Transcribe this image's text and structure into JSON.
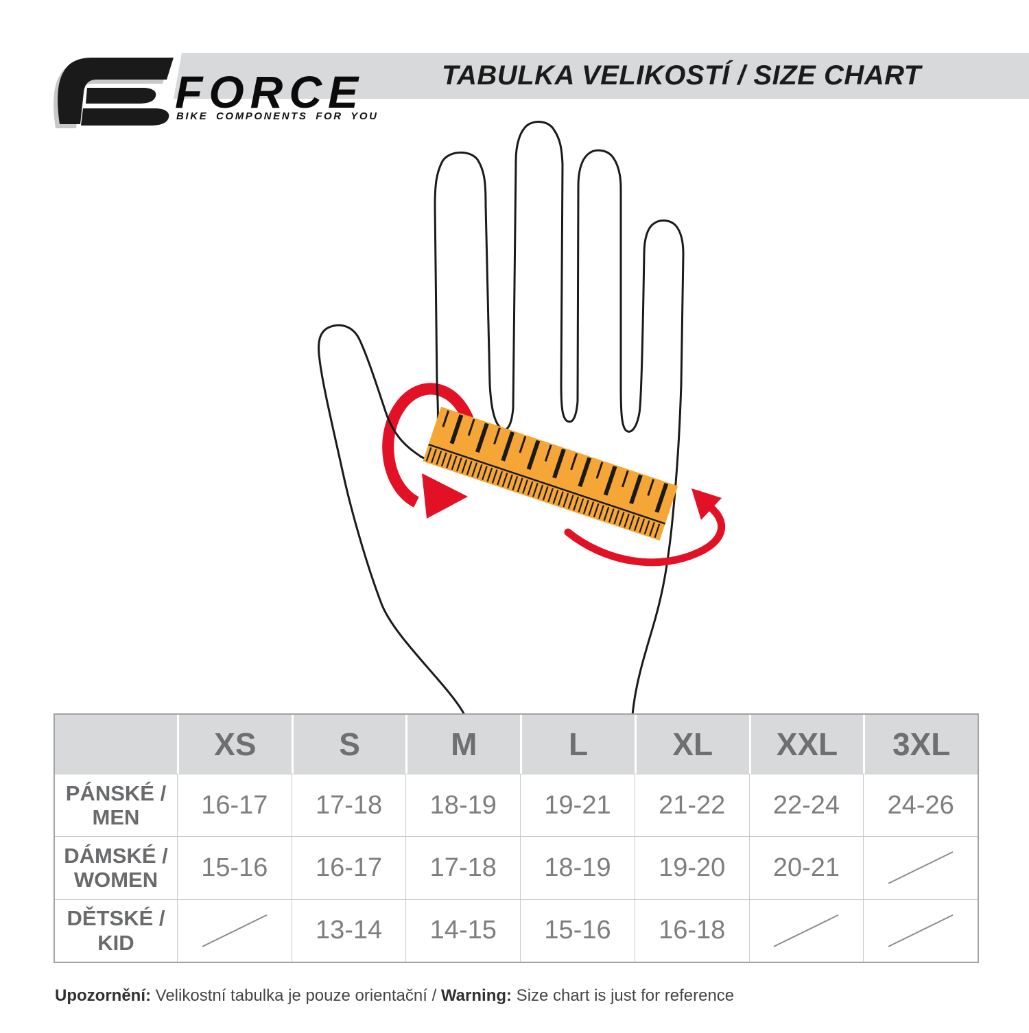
{
  "colors": {
    "band_gray": "#D8D9DA",
    "table_header_bg": "#D8D9DA",
    "ruler_orange": "#F5A637",
    "arrow_red": "#E31126",
    "ink": "#1A1A1A",
    "grid_line": "#C9CACB",
    "table_border": "#A2A3A5",
    "value_text": "#7D7E80",
    "header_text": "#6E6F71"
  },
  "logo": {
    "brand": "FORCE",
    "tagline": "BIKE COMPONENTS FOR YOU"
  },
  "header": {
    "title": "TABULKA VELIKOSTÍ / SIZE CHART"
  },
  "illustration": {
    "description": "outlined open hand with orange ruler wrapped across palm and red arrows showing circumference measurement"
  },
  "size_table": {
    "columns": [
      "XS",
      "S",
      "M",
      "L",
      "XL",
      "XXL",
      "3XL"
    ],
    "rows": [
      {
        "label_line1": "PÁNSKÉ /",
        "label_line2": "MEN",
        "values": [
          "16-17",
          "17-18",
          "18-19",
          "19-21",
          "21-22",
          "22-24",
          "24-26"
        ]
      },
      {
        "label_line1": "DÁMSKÉ /",
        "label_line2": "WOMEN",
        "values": [
          "15-16",
          "16-17",
          "17-18",
          "18-19",
          "19-20",
          "20-21",
          null
        ]
      },
      {
        "label_line1": "DĚTSKÉ /",
        "label_line2": "KID",
        "values": [
          null,
          "13-14",
          "14-15",
          "15-16",
          "16-18",
          null,
          null
        ]
      }
    ],
    "not_available_marker": "diagonal slash"
  },
  "footer": {
    "cz_label": "Upozornění:",
    "cz_text": " Velikostní tabulka je pouze orientační / ",
    "en_label": "Warning:",
    "en_text": " Size chart is just for reference"
  }
}
